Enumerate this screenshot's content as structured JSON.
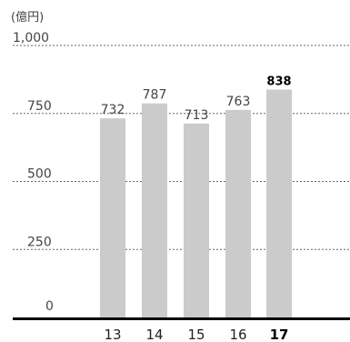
{
  "chart_data": {
    "type": "bar",
    "unit_label": "(億円)",
    "categories": [
      "13",
      "14",
      "15",
      "16",
      "17"
    ],
    "values": [
      732,
      787,
      713,
      763,
      838
    ],
    "value_labels": [
      "732",
      "787",
      "713",
      "763",
      "838"
    ],
    "highlight_index": 4,
    "yticks": [
      {
        "value": 0,
        "label": "0"
      },
      {
        "value": 250,
        "label": "250"
      },
      {
        "value": 500,
        "label": "500"
      },
      {
        "value": 750,
        "label": "750"
      },
      {
        "value": 1000,
        "label": "1,000"
      }
    ],
    "ylim": [
      0,
      1000
    ],
    "grid": true,
    "colors": {
      "bar": "#cbcbcb",
      "grid": "#666666",
      "axis": "#000000",
      "text": "#444444"
    }
  }
}
